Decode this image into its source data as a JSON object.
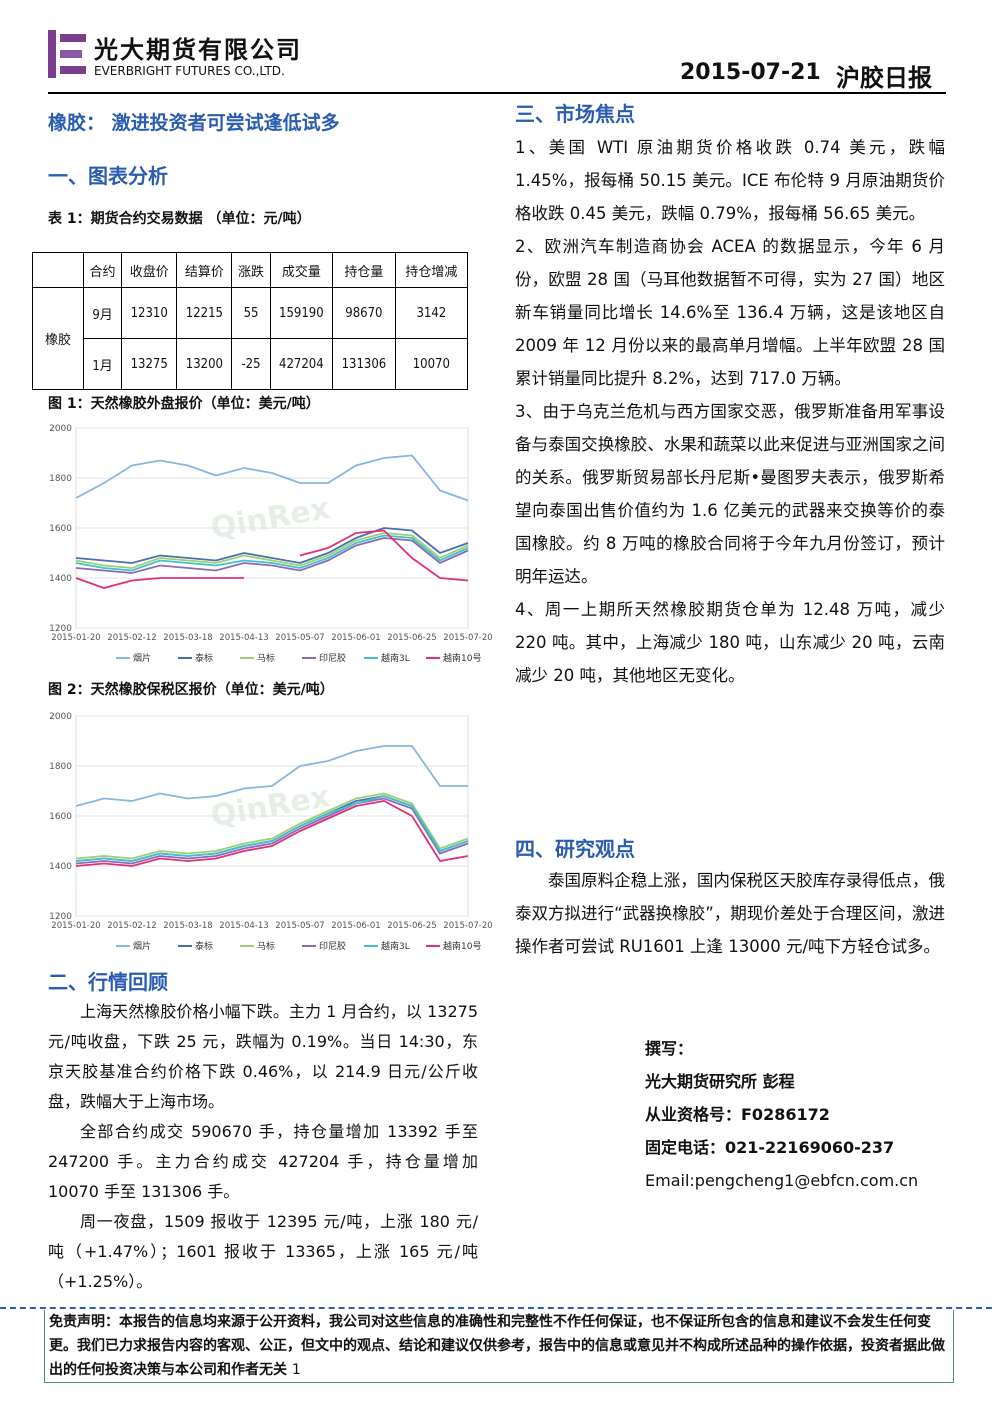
{
  "header": {
    "company": "光大期货有限公司",
    "company_en": "EVERBRIGHT FUTURES CO.,LTD.",
    "date": "2015-07-21",
    "report": "沪胶日报"
  },
  "headline": "橡胶： 激进投资者可尝试逢低试多",
  "section1": "一、图表分析",
  "table": {
    "caption": "表 1：期货合约交易数据 （单位：元/吨）",
    "header": [
      "合约",
      "收盘价",
      "结算价",
      "涨跌",
      "成交量",
      "持仓量",
      "持仓增减"
    ],
    "group": "橡胶",
    "rows": [
      [
        "9月",
        "12310",
        "12215",
        "55",
        "159190",
        "98670",
        "3142"
      ],
      [
        "1月",
        "13275",
        "13200",
        "-25",
        "427204",
        "131306",
        "10070"
      ]
    ]
  },
  "chart_data": [
    {
      "type": "line",
      "title": "图 1：天然橡胶外盘报价（单位：美元/吨）",
      "categories": [
        "2015-01-20",
        null,
        "2015-02-12",
        null,
        "2015-03-18",
        null,
        "2015-04-13",
        null,
        "2015-05-07",
        null,
        "2015-06-01",
        null,
        "2015-06-25",
        null,
        "2015-07-20"
      ],
      "ylim": [
        1200,
        2000
      ],
      "yticks": [
        1200,
        1400,
        1600,
        1800,
        2000
      ],
      "series": [
        {
          "name": "烟片",
          "color": "#86b6e6",
          "values": [
            1720,
            1780,
            1850,
            1870,
            1850,
            1810,
            1840,
            1820,
            1780,
            1780,
            1850,
            1880,
            1890,
            1750,
            1710
          ]
        },
        {
          "name": "泰标",
          "color": "#4a6fb0",
          "values": [
            1480,
            1470,
            1460,
            1490,
            1480,
            1470,
            1500,
            1480,
            1460,
            1500,
            1560,
            1600,
            1590,
            1500,
            1540
          ]
        },
        {
          "name": "马标",
          "color": "#9bd070",
          "values": [
            1470,
            1450,
            1440,
            1480,
            1470,
            1460,
            1490,
            1470,
            1450,
            1490,
            1550,
            1580,
            1570,
            1480,
            1530
          ]
        },
        {
          "name": "印尼胶",
          "color": "#8c6bb1",
          "values": [
            1440,
            1430,
            1420,
            1450,
            1440,
            1430,
            1460,
            1450,
            1430,
            1470,
            1530,
            1560,
            1550,
            1460,
            1510
          ]
        },
        {
          "name": "越南3L",
          "color": "#40c0d0",
          "values": [
            1460,
            1440,
            1430,
            1470,
            1460,
            1450,
            1470,
            1460,
            1440,
            1480,
            1540,
            1570,
            1560,
            1470,
            1520
          ]
        },
        {
          "name": "越南10号",
          "color": "#e0307a",
          "values": [
            1400,
            1360,
            1390,
            1400,
            1400,
            1400,
            1400,
            null,
            1490,
            1520,
            1580,
            1590,
            1480,
            1400,
            1390
          ]
        }
      ]
    },
    {
      "type": "line",
      "title": "图 2：天然橡胶保税区报价（单位：美元/吨）",
      "categories": [
        "2015-01-20",
        null,
        "2015-02-12",
        null,
        "2015-03-18",
        null,
        "2015-04-13",
        null,
        "2015-05-07",
        null,
        "2015-06-01",
        null,
        "2015-06-25",
        null,
        "2015-07-20"
      ],
      "ylim": [
        1200,
        2000
      ],
      "yticks": [
        1200,
        1400,
        1600,
        1800,
        2000
      ],
      "series": [
        {
          "name": "烟片",
          "color": "#86b6e6",
          "values": [
            1640,
            1670,
            1660,
            1690,
            1670,
            1680,
            1710,
            1720,
            1800,
            1820,
            1860,
            1880,
            1880,
            1720,
            1720
          ]
        },
        {
          "name": "泰标",
          "color": "#4a6fb0",
          "values": [
            1420,
            1430,
            1420,
            1450,
            1440,
            1450,
            1480,
            1500,
            1560,
            1610,
            1660,
            1680,
            1640,
            1460,
            1500
          ]
        },
        {
          "name": "马标",
          "color": "#9bd070",
          "values": [
            1430,
            1440,
            1430,
            1460,
            1450,
            1460,
            1490,
            1510,
            1570,
            1620,
            1670,
            1690,
            1650,
            1470,
            1510
          ]
        },
        {
          "name": "印尼胶",
          "color": "#8c6bb1",
          "values": [
            1410,
            1420,
            1410,
            1440,
            1430,
            1440,
            1470,
            1490,
            1550,
            1600,
            1650,
            1670,
            1630,
            1450,
            1490
          ]
        },
        {
          "name": "越南3L",
          "color": "#40c0d0",
          "values": [
            1420,
            1430,
            1420,
            1450,
            1440,
            1450,
            1480,
            1500,
            1560,
            1610,
            1650,
            1680,
            1640,
            1460,
            1500
          ]
        },
        {
          "name": "越南10号",
          "color": "#e0307a",
          "values": [
            1400,
            1410,
            1400,
            1430,
            1420,
            1430,
            1460,
            1480,
            1540,
            1590,
            1640,
            1660,
            1600,
            1420,
            1440
          ]
        }
      ]
    }
  ],
  "section2": "二、行情回顾",
  "review": [
    "上海天然橡胶价格小幅下跌。主力 1 月合约，以 13275 元/吨收盘，下跌 25 元，跌幅为 0.19%。当日 14:30，东京天胶基准合约价格下跌 0.46%，以 214.9 日元/公斤收盘，跌幅大于上海市场。",
    "全部合约成交 590670 手，持仓量增加 13392 手至 247200 手。主力合约成交 427204 手，持仓量增加 10070 手至 131306 手。",
    "周一夜盘，1509 报收于 12395 元/吨，上涨 180 元/吨（+1.47%）；1601 报收于 13365，上涨 165 元/吨（+1.25%）。"
  ],
  "section3": "三、市场焦点",
  "focus": [
    "1、美国 WTI 原油期货价格收跌 0.74 美元，跌幅 1.45%，报每桶 50.15 美元。ICE 布伦特 9 月原油期货价格收跌 0.45 美元，跌幅 0.79%，报每桶 56.65 美元。",
    "2、欧洲汽车制造商协会 ACEA 的数据显示，今年 6 月份，欧盟 28 国（马耳他数据暂不可得，实为 27 国）地区新车销量同比增长 14.6%至 136.4 万辆，这是该地区自 2009 年 12 月份以来的最高单月增幅。上半年欧盟 28 国累计销量同比提升 8.2%，达到 717.0 万辆。",
    "3、由于乌克兰危机与西方国家交恶，俄罗斯准备用军事设备与泰国交换橡胶、水果和蔬菜以此来促进与亚洲国家之间的关系。俄罗斯贸易部长丹尼斯•曼图罗夫表示，俄罗斯希望向泰国出售价值约为 1.6 亿美元的武器来交换等价的泰国橡胶。约 8 万吨的橡胶合同将于今年九月份签订，预计明年运达。",
    "4、周一上期所天然橡胶期货仓单为 12.48 万吨，减少 220 吨。其中，上海减少 180 吨，山东减少 20 吨，云南减少 20 吨，其他地区无变化。"
  ],
  "section4": "四、研究观点",
  "view": "泰国原料企稳上涨，国内保税区天胶库存录得低点，俄泰双方拟进行“武器换橡胶”，期现价差处于合理区间，激进操作者可尝试 RU1601 上逢 13000 元/吨下方轻仓试多。",
  "author": [
    "撰写：",
    "光大期货研究所 彭程",
    "从业资格号：F0286172",
    "固定电话：021-22169060-237",
    "Email:pengcheng1@ebfcn.com.cn"
  ],
  "disclaimer": "免责声明：本报告的信息均来源于公开资料，我公司对这些信息的准确性和完整性不作任何保证，也不保证所包含的信息和建议不会发生任何变更。我们已力求报告内容的客观、公正，但文中的观点、结论和建议仅供参考，报告中的信息或意见并不构成所述品种的操作依据，投资者据此做出的任何投资决策与本公司和作者无关",
  "page_number": "1"
}
